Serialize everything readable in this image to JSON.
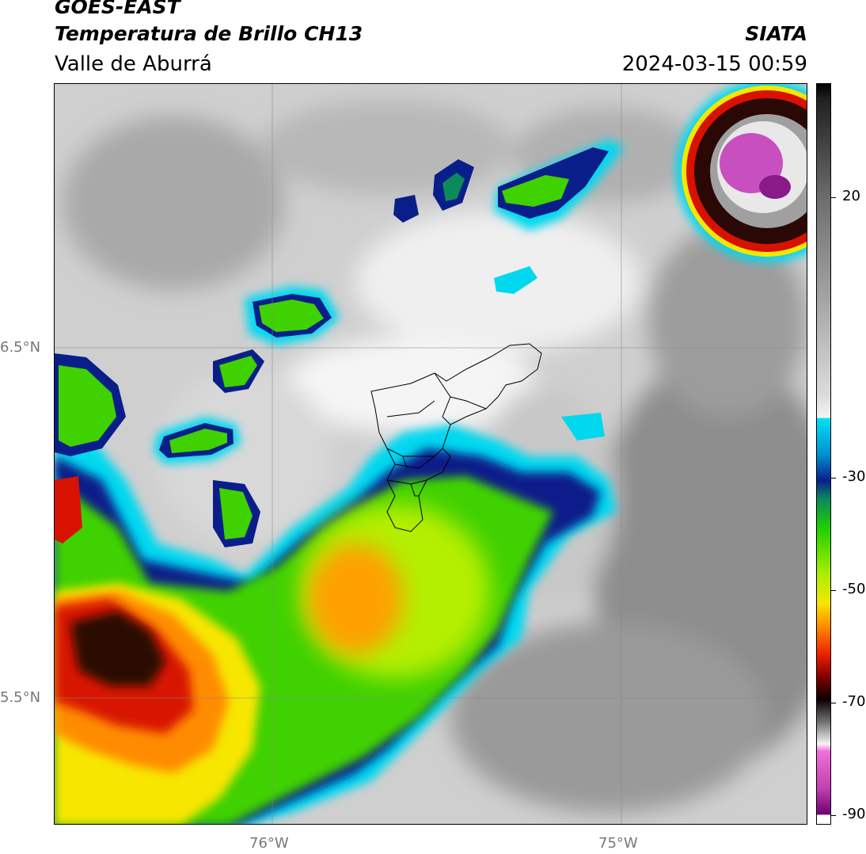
{
  "header": {
    "satellite": "GOES-EAST",
    "product": "Temperatura de Brillo CH13",
    "region": "Valle de Aburrá",
    "brand": "SIATA",
    "timestamp": "2024-03-15 00:59"
  },
  "map": {
    "lat_labels": [
      "6.5°N",
      "5.5°N"
    ],
    "lon_labels": [
      "76°W",
      "75°W"
    ]
  },
  "colorbar": {
    "tick_labels": [
      "20",
      "-30",
      "-50",
      "-70",
      "-90"
    ],
    "colors": {
      "magenta": "#c84fc0",
      "black": "#1a0a08",
      "red": "#d81200",
      "orange": "#ff8c00",
      "yellow": "#f7e600",
      "green": "#3fd100",
      "teal": "#0c8a5a",
      "navy": "#0a1e8a",
      "cyan": "#00d8f0",
      "gray_light": "#ececec",
      "gray_dark": "#2a2a2a"
    }
  }
}
